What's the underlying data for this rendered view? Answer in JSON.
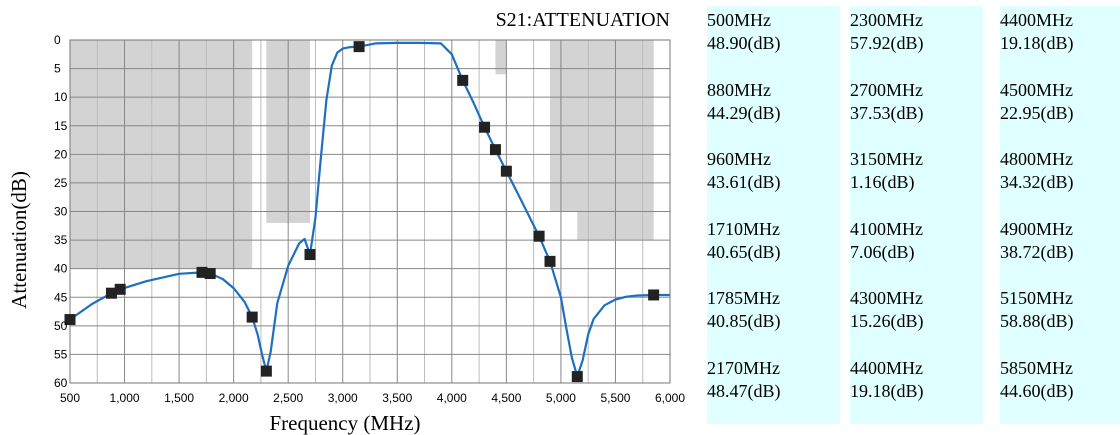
{
  "chart_data": {
    "type": "line",
    "title": "S21:ATTENUATION",
    "xlabel": "Frequency (MHz)",
    "ylabel": "Attenuation(dB)",
    "xlim": [
      500,
      6000
    ],
    "ylim": [
      0,
      60
    ],
    "y_inverted": true,
    "grid": true,
    "x_ticks": [
      500,
      1000,
      1500,
      2000,
      2500,
      3000,
      3500,
      4000,
      4500,
      5000,
      5500,
      6000
    ],
    "x_tick_labels": [
      "500",
      "1,000",
      "1,500",
      "2,000",
      "2,500",
      "3,000",
      "3,500",
      "4,000",
      "4,500",
      "5,000",
      "5,500",
      "6,000"
    ],
    "y_ticks": [
      0,
      5,
      10,
      15,
      20,
      25,
      30,
      35,
      40,
      45,
      50,
      55,
      60
    ],
    "y_tick_labels": [
      "0",
      "5",
      "10",
      "15",
      "20",
      "25",
      "30",
      "35",
      "40",
      "45",
      "50",
      "55",
      "60"
    ],
    "line_color": "#1f6fc0",
    "mask_color": "#d3d3d3",
    "series": [
      {
        "x": [
          500,
          700,
          880,
          960,
          1200,
          1500,
          1710,
          1785,
          1900,
          2000,
          2100,
          2170,
          2220,
          2260,
          2300,
          2340,
          2400,
          2500,
          2600,
          2650,
          2700,
          2750,
          2800,
          2850,
          2900,
          2950,
          3000,
          3050,
          3100,
          3150,
          3300,
          3500,
          3700,
          3900,
          4000,
          4100,
          4200,
          4300,
          4400,
          4500,
          4600,
          4700,
          4800,
          4900,
          5000,
          5050,
          5100,
          5150,
          5200,
          5250,
          5300,
          5400,
          5500,
          5600,
          5700,
          5850,
          6000
        ],
        "values": [
          48.9,
          46.2,
          44.29,
          43.61,
          42.2,
          40.9,
          40.65,
          40.85,
          41.8,
          43.4,
          45.8,
          48.47,
          51.5,
          55.0,
          57.92,
          54.5,
          46.0,
          39.5,
          35.6,
          34.8,
          37.53,
          31.0,
          20.5,
          10.5,
          4.5,
          2.2,
          1.5,
          1.3,
          1.2,
          1.16,
          0.6,
          0.5,
          0.5,
          0.6,
          2.5,
          7.06,
          11.0,
          15.26,
          19.18,
          22.95,
          26.7,
          30.5,
          34.32,
          38.72,
          45.0,
          50.5,
          55.5,
          58.88,
          56.0,
          51.5,
          48.8,
          46.4,
          45.4,
          44.9,
          44.7,
          44.6,
          44.6
        ]
      }
    ],
    "markers": {
      "x": [
        500,
        880,
        960,
        1710,
        1785,
        2170,
        2300,
        2700,
        3150,
        4100,
        4300,
        4400,
        4500,
        4800,
        4900,
        5150,
        5850
      ],
      "values": [
        48.9,
        44.29,
        43.61,
        40.65,
        40.85,
        48.47,
        57.92,
        37.53,
        1.16,
        7.06,
        15.26,
        19.18,
        22.95,
        34.32,
        38.72,
        58.88,
        44.6
      ]
    },
    "masks": [
      {
        "x0": 500,
        "x1": 2170,
        "y0": 0,
        "y1": 40
      },
      {
        "x0": 2300,
        "x1": 2700,
        "y0": 0,
        "y1": 32
      },
      {
        "x0": 4400,
        "x1": 4500,
        "y0": 0,
        "y1": 6
      },
      {
        "x0": 4900,
        "x1": 5850,
        "y0": 0,
        "y1": 30
      },
      {
        "x0": 5150,
        "x1": 5850,
        "y0": 0,
        "y1": 35
      }
    ]
  },
  "markers_table": {
    "columns": [
      [
        {
          "freq": "500MHz",
          "value": "48.90(dB)"
        },
        {
          "freq": "880MHz",
          "value": "44.29(dB)"
        },
        {
          "freq": "960MHz",
          "value": "43.61(dB)"
        },
        {
          "freq": "1710MHz",
          "value": "40.65(dB)"
        },
        {
          "freq": "1785MHz",
          "value": "40.85(dB)"
        },
        {
          "freq": "2170MHz",
          "value": "48.47(dB)"
        }
      ],
      [
        {
          "freq": "2300MHz",
          "value": "57.92(dB)"
        },
        {
          "freq": "2700MHz",
          "value": "37.53(dB)"
        },
        {
          "freq": "3150MHz",
          "value": "1.16(dB)"
        },
        {
          "freq": "4100MHz",
          "value": "7.06(dB)"
        },
        {
          "freq": "4300MHz",
          "value": "15.26(dB)"
        },
        {
          "freq": "4400MHz",
          "value": "19.18(dB)"
        }
      ],
      [
        {
          "freq": "4400MHz",
          "value": "19.18(dB)"
        },
        {
          "freq": "4500MHz",
          "value": "22.95(dB)"
        },
        {
          "freq": "4800MHz",
          "value": "34.32(dB)"
        },
        {
          "freq": "4900MHz",
          "value": "38.72(dB)"
        },
        {
          "freq": "5150MHz",
          "value": "58.88(dB)"
        },
        {
          "freq": "5850MHz",
          "value": "44.60(dB)"
        }
      ]
    ]
  }
}
